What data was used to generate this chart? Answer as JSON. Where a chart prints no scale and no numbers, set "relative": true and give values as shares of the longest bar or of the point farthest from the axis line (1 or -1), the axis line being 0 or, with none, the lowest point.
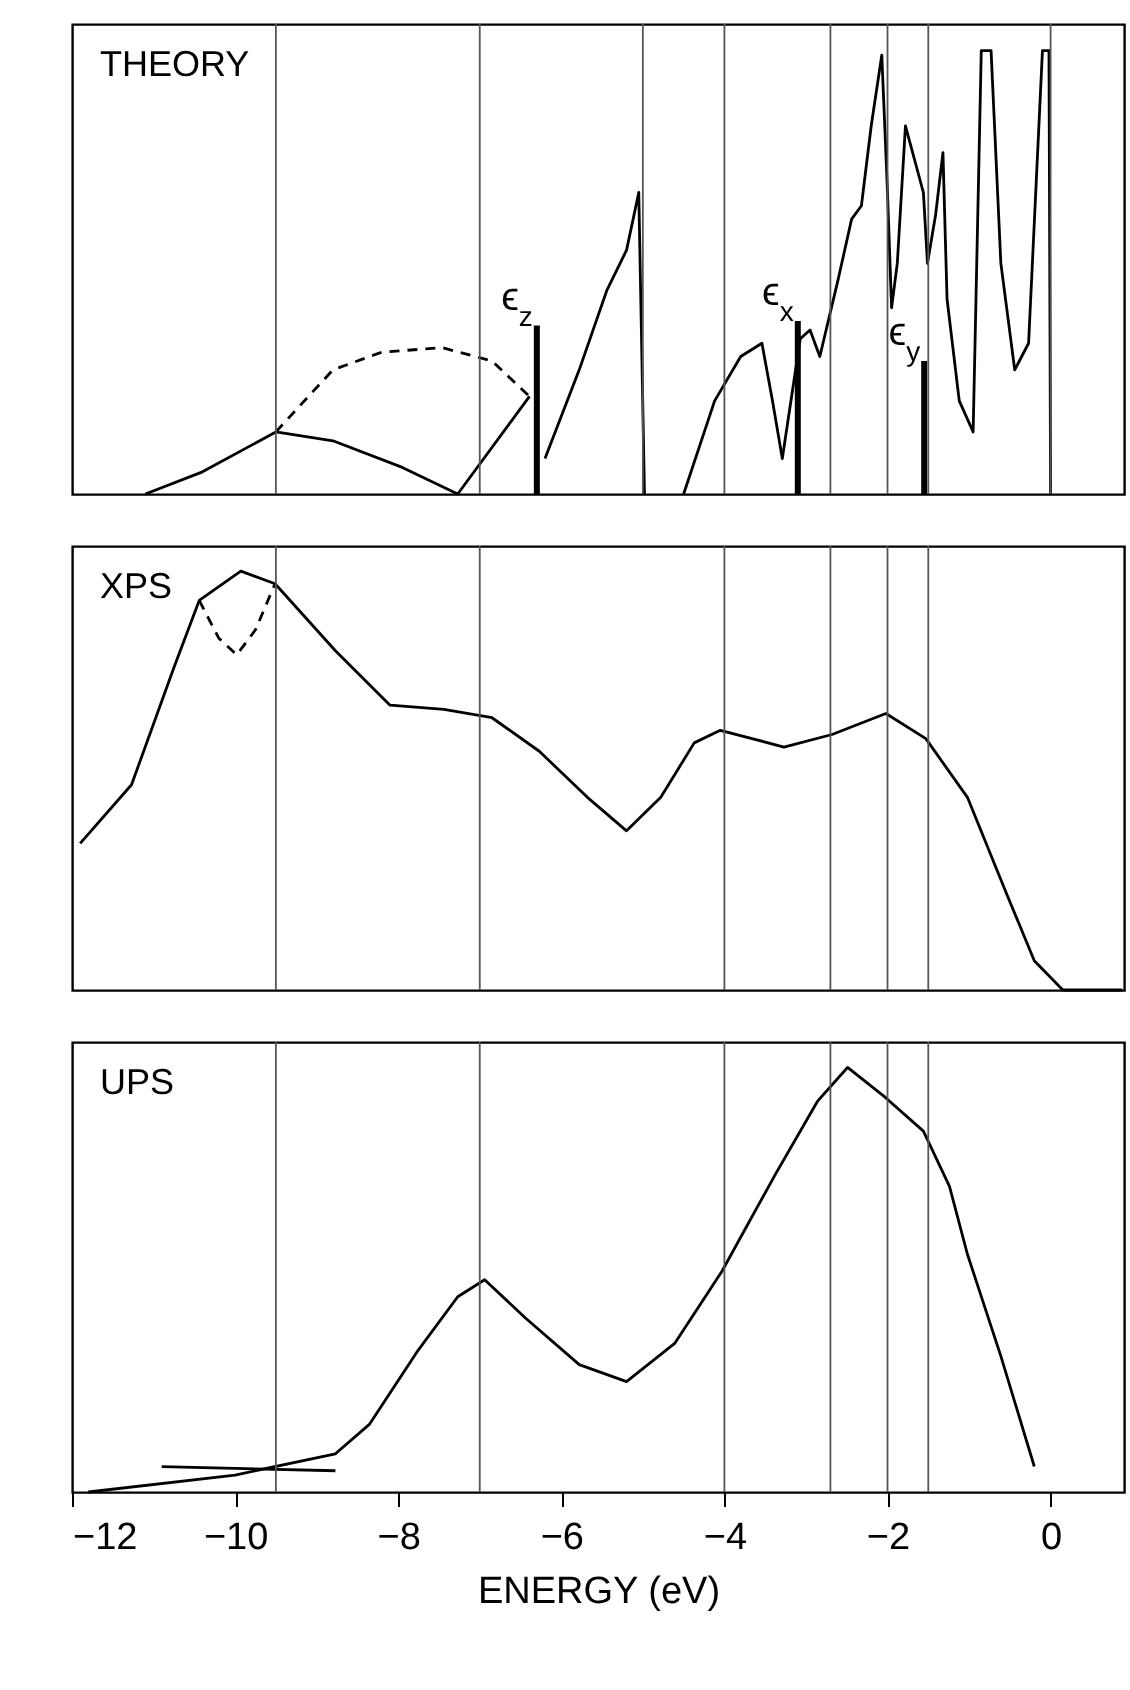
{
  "chart_data": [
    {
      "type": "line",
      "title": "THEORY",
      "relative": true,
      "xlim": [
        -12,
        0.9
      ],
      "tick_labels": false,
      "grid": false,
      "series": [
        {
          "color": "#000000",
          "line_style": "solid",
          "x": [
            -11.1,
            -10.4,
            -9.5,
            -8.8,
            -7.95,
            -7.27,
            -6.39,
            -6.3,
            -6.2,
            -5.78,
            -5.44,
            -5.2,
            -5.05,
            -4.98,
            -4.7,
            -4.5,
            -4.12,
            -3.8,
            -3.54,
            -3.41,
            -3.29,
            -3.07,
            -2.95,
            -2.83,
            -2.61,
            -2.44,
            -2.32,
            -2.2,
            -2.07,
            -2.0,
            -1.95,
            -1.88,
            -1.78,
            -1.56,
            -1.51,
            -1.41,
            -1.32,
            -1.27,
            -1.12,
            -0.95,
            -0.85,
            -0.73,
            -0.61,
            -0.44,
            -0.27,
            -0.1,
            -0.02,
            0.0
          ],
          "values": [
            0,
            0.05,
            0.14,
            0.12,
            0.06,
            0,
            0.22,
            null,
            0.08,
            0.28,
            0.46,
            0.55,
            0.68,
            0,
            null,
            0,
            0.21,
            0.31,
            0.34,
            0.21,
            0.08,
            0.35,
            0.37,
            0.31,
            0.48,
            0.62,
            0.65,
            0.83,
            0.99,
            0.68,
            0.42,
            0.52,
            0.83,
            0.68,
            0.52,
            0.63,
            0.77,
            0.44,
            0.21,
            0.14,
            1.0,
            1.0,
            0.52,
            0.28,
            0.34,
            1.0,
            1.0,
            0
          ]
        },
        {
          "color": "#000000",
          "line_style": "dashed",
          "x": [
            -9.5,
            -8.8,
            -8.2,
            -7.46,
            -6.85,
            -6.39
          ],
          "values": [
            0.14,
            0.28,
            0.32,
            0.33,
            0.3,
            0.22
          ]
        },
        {
          "type": "bar",
          "color": "#000000",
          "x": [
            -6.3,
            -3.1,
            -1.55
          ],
          "values": [
            0.38,
            0.39,
            0.3
          ]
        }
      ],
      "annotations": [
        {
          "text": "ϵ$_{z}$",
          "x": -6.3,
          "y": 0.38
        },
        {
          "text": "ϵ$_{x}$",
          "x": -3.1,
          "y": 0.39
        },
        {
          "text": "ϵ$_{y}$",
          "x": -1.55,
          "y": 0.3
        }
      ],
      "ref_lines": [
        {
          "axis": "x",
          "value": -9.5
        },
        {
          "axis": "x",
          "value": -7
        },
        {
          "axis": "x",
          "value": -5
        },
        {
          "axis": "x",
          "value": -4
        },
        {
          "axis": "x",
          "value": -2.7
        },
        {
          "axis": "x",
          "value": -2
        },
        {
          "axis": "x",
          "value": -1.5
        },
        {
          "axis": "x",
          "value": 0
        }
      ]
    },
    {
      "type": "line",
      "title": "XPS",
      "relative": true,
      "xlim": [
        -12,
        0.9
      ],
      "tick_labels": false,
      "grid": false,
      "series": [
        {
          "color": "#000000",
          "line_style": "solid",
          "x": [
            -11.9,
            -11.27,
            -10.75,
            -10.44,
            -9.93,
            -9.51,
            -8.77,
            -8.1,
            -7.44,
            -6.85,
            -6.27,
            -5.68,
            -5.2,
            -4.78,
            -4.37,
            -4.05,
            -3.27,
            -2.68,
            -2.02,
            -1.53,
            -1.02,
            -0.54,
            -0.2,
            0.15,
            0.88
          ],
          "values": [
            0.35,
            0.49,
            0.77,
            0.93,
            1.0,
            0.97,
            0.81,
            0.68,
            0.67,
            0.65,
            0.57,
            0.46,
            0.38,
            0.46,
            0.59,
            0.62,
            0.58,
            0.61,
            0.66,
            0.6,
            0.46,
            0.23,
            0.07,
            0,
            0
          ]
        },
        {
          "color": "#000000",
          "line_style": "dashed",
          "x": [
            -10.44,
            -10.2,
            -9.98,
            -9.75,
            -9.51
          ],
          "values": [
            0.93,
            0.84,
            0.8,
            0.86,
            0.97
          ]
        }
      ],
      "ref_lines": [
        {
          "axis": "x",
          "value": -9.5
        },
        {
          "axis": "x",
          "value": -7
        },
        {
          "axis": "x",
          "value": -4
        },
        {
          "axis": "x",
          "value": -2.7
        },
        {
          "axis": "x",
          "value": -2
        },
        {
          "axis": "x",
          "value": -1.5
        }
      ]
    },
    {
      "type": "line",
      "title": "UPS",
      "xlabel": "ENERGY (eV)",
      "relative": true,
      "xlim": [
        -12,
        0.9
      ],
      "xticks": [
        -12,
        -10,
        -8,
        -6,
        -4,
        -2,
        0
      ],
      "tick_labels": "x",
      "grid": false,
      "series": [
        {
          "color": "#000000",
          "line_style": "solid",
          "x": [
            -11.8,
            -10.0,
            -8.77,
            -8.35,
            -7.77,
            -7.27,
            -6.94,
            -6.44,
            -5.78,
            -5.2,
            -4.61,
            -4.03,
            -3.37,
            -2.86,
            -2.49,
            -2.03,
            -1.56,
            -1.24,
            -1.02,
            -0.61,
            -0.2
          ],
          "values": [
            0,
            0.04,
            0.09,
            0.16,
            0.33,
            0.46,
            0.5,
            0.41,
            0.3,
            0.26,
            0.35,
            0.52,
            0.75,
            0.92,
            1.0,
            0.93,
            0.85,
            0.72,
            0.56,
            0.32,
            0.06
          ]
        },
        {
          "color": "#000000",
          "line_style": "solid",
          "x": [
            -10.9,
            -8.77
          ],
          "values": [
            0.06,
            0.05
          ]
        }
      ],
      "ref_lines": [
        {
          "axis": "x",
          "value": -9.5
        },
        {
          "axis": "x",
          "value": -7
        },
        {
          "axis": "x",
          "value": -4
        },
        {
          "axis": "x",
          "value": -2.7
        },
        {
          "axis": "x",
          "value": -2
        },
        {
          "axis": "x",
          "value": -1.5
        }
      ]
    }
  ]
}
